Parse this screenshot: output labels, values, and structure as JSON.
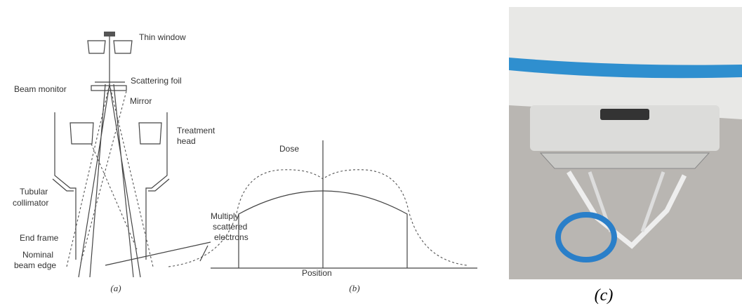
{
  "panel_a": {
    "labels": {
      "thin_window": "Thin window",
      "scattering_foil": "Scattering foil",
      "beam_monitor": "Beam monitor",
      "mirror": "Mirror",
      "treatment_head": [
        "Treatment",
        "head"
      ],
      "tubular_collimator": [
        "Tubular",
        "collimator"
      ],
      "end_frame": "End frame",
      "nominal_beam_edge": [
        "Nominal",
        "beam edge"
      ]
    },
    "caption": "(a)"
  },
  "panel_b": {
    "labels": {
      "dose": "Dose",
      "multiply_scattered": [
        "Multiply",
        "scattered",
        "electrons"
      ],
      "position": "Position"
    },
    "caption": "(b)"
  },
  "panel_c": {
    "caption": "(c)"
  }
}
